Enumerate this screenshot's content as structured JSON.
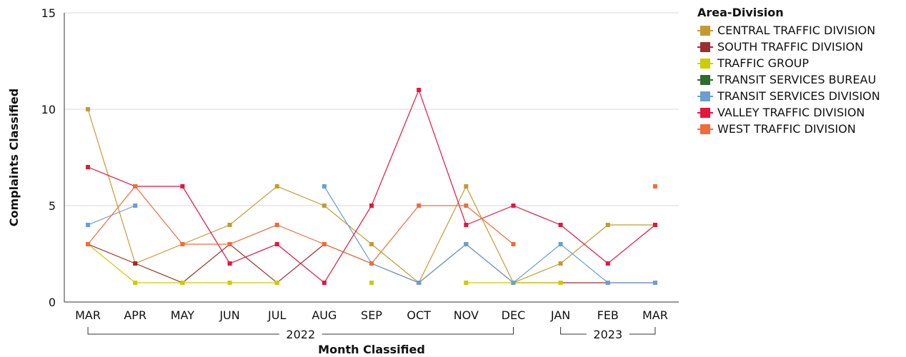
{
  "chart_data": {
    "type": "line",
    "ylabel": "Complaints Classified",
    "xlabel": "Month Classified",
    "ylim": [
      0,
      15
    ],
    "yticks": [
      "0",
      "5",
      "10",
      "15"
    ],
    "categories": [
      "MAR",
      "APR",
      "MAY",
      "JUN",
      "JUL",
      "AUG",
      "SEP",
      "OCT",
      "NOV",
      "DEC",
      "JAN",
      "FEB",
      "MAR"
    ],
    "year_groups": [
      {
        "label": "2022",
        "from": 0,
        "to": 9
      },
      {
        "label": "2023",
        "from": 10,
        "to": 12
      }
    ],
    "grid": "horizontal",
    "legend_position": "right",
    "legend_title": "Area-Division",
    "series": [
      {
        "name": "CENTRAL TRAFFIC DIVISION",
        "color": "#C6992F",
        "values": [
          10,
          2,
          3,
          4,
          6,
          5,
          3,
          1,
          6,
          1,
          2,
          4,
          4
        ]
      },
      {
        "name": "SOUTH TRAFFIC DIVISION",
        "color": "#9B2E2E",
        "values": [
          3,
          2,
          1,
          3,
          1,
          3,
          2,
          1,
          3,
          1,
          1,
          1,
          1
        ]
      },
      {
        "name": "TRAFFIC GROUP",
        "color": "#CCCC00",
        "values": [
          3,
          1,
          1,
          1,
          1,
          null,
          1,
          null,
          1,
          1,
          1,
          null,
          null
        ]
      },
      {
        "name": "TRANSIT SERVICES BUREAU",
        "color": "#2E6B2E",
        "values": [
          null,
          null,
          null,
          null,
          null,
          null,
          null,
          null,
          null,
          null,
          null,
          null,
          null
        ]
      },
      {
        "name": "TRANSIT SERVICES DIVISION",
        "color": "#6A9FCF",
        "values": [
          4,
          5,
          null,
          null,
          null,
          6,
          2,
          1,
          3,
          1,
          3,
          1,
          1
        ]
      },
      {
        "name": "VALLEY TRAFFIC DIVISION",
        "color": "#E8143C",
        "values": [
          7,
          6,
          6,
          2,
          3,
          1,
          5,
          11,
          4,
          5,
          4,
          2,
          4
        ]
      },
      {
        "name": "WEST TRAFFIC DIVISION",
        "color": "#F26B3A",
        "values": [
          3,
          6,
          3,
          3,
          4,
          3,
          2,
          5,
          5,
          3,
          null,
          null,
          6
        ]
      }
    ]
  }
}
